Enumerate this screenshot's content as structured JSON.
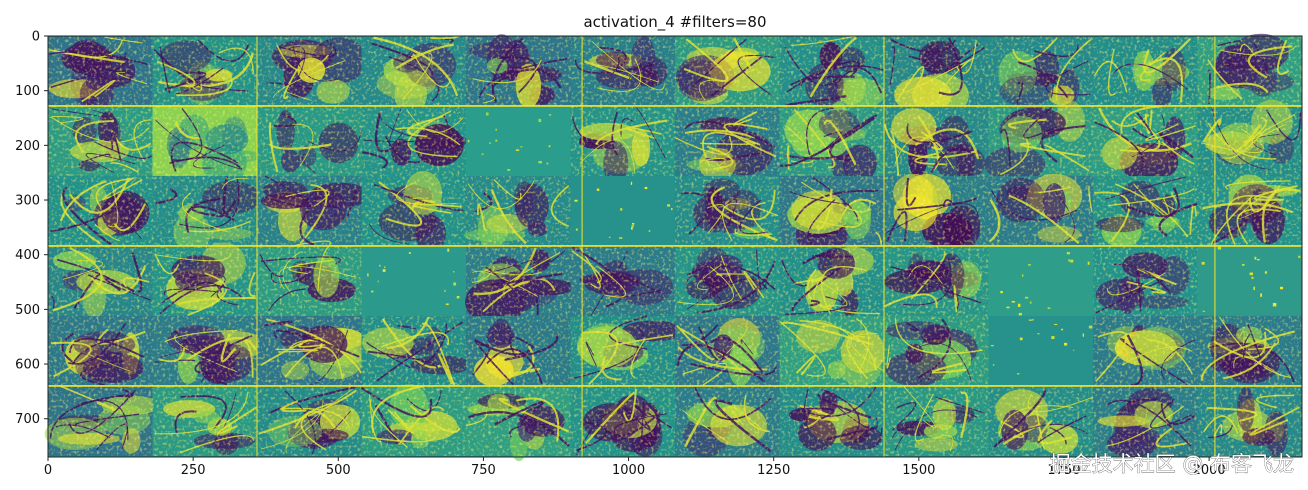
{
  "chart_data": {
    "type": "heatmap",
    "title": "activation_4 #filters=80",
    "xlabel": "",
    "ylabel": "",
    "xlim": [
      0,
      2160
    ],
    "ylim": [
      770,
      0
    ],
    "x_ticks": [
      0,
      250,
      500,
      750,
      1000,
      1250,
      1500,
      1750,
      2000
    ],
    "y_ticks": [
      0,
      100,
      200,
      300,
      400,
      500,
      600,
      700
    ],
    "grid": false,
    "colormap": "viridis",
    "colormap_stops": [
      "#440154",
      "#3b528b",
      "#21918c",
      "#5ec962",
      "#fde725"
    ],
    "grid_layout": {
      "rows": 6,
      "cols": 12
    },
    "tile_width_units": 180,
    "tile_height_units": 128,
    "flat_tiles": [
      {
        "row": 1,
        "col": 4,
        "color": "#2a9d8c"
      },
      {
        "row": 2,
        "col": 5,
        "color": "#27918b"
      },
      {
        "row": 3,
        "col": 3,
        "color": "#2b9a8c"
      },
      {
        "row": 3,
        "col": 9,
        "color": "#2e9e8b"
      },
      {
        "row": 3,
        "col": 11,
        "color": "#2f998a"
      },
      {
        "row": 4,
        "col": 9,
        "color": "#27918b"
      }
    ],
    "bright_tiles": [
      {
        "row": 1,
        "col": 1
      }
    ],
    "separator_color": "#fde725",
    "separator_rows_at_y": [
      128,
      384,
      640
    ],
    "separator_cols_at_x": [
      360,
      920,
      1440,
      2010
    ]
  },
  "watermark": {
    "text": "掘金技术社区 @ 布客飞龙"
  }
}
